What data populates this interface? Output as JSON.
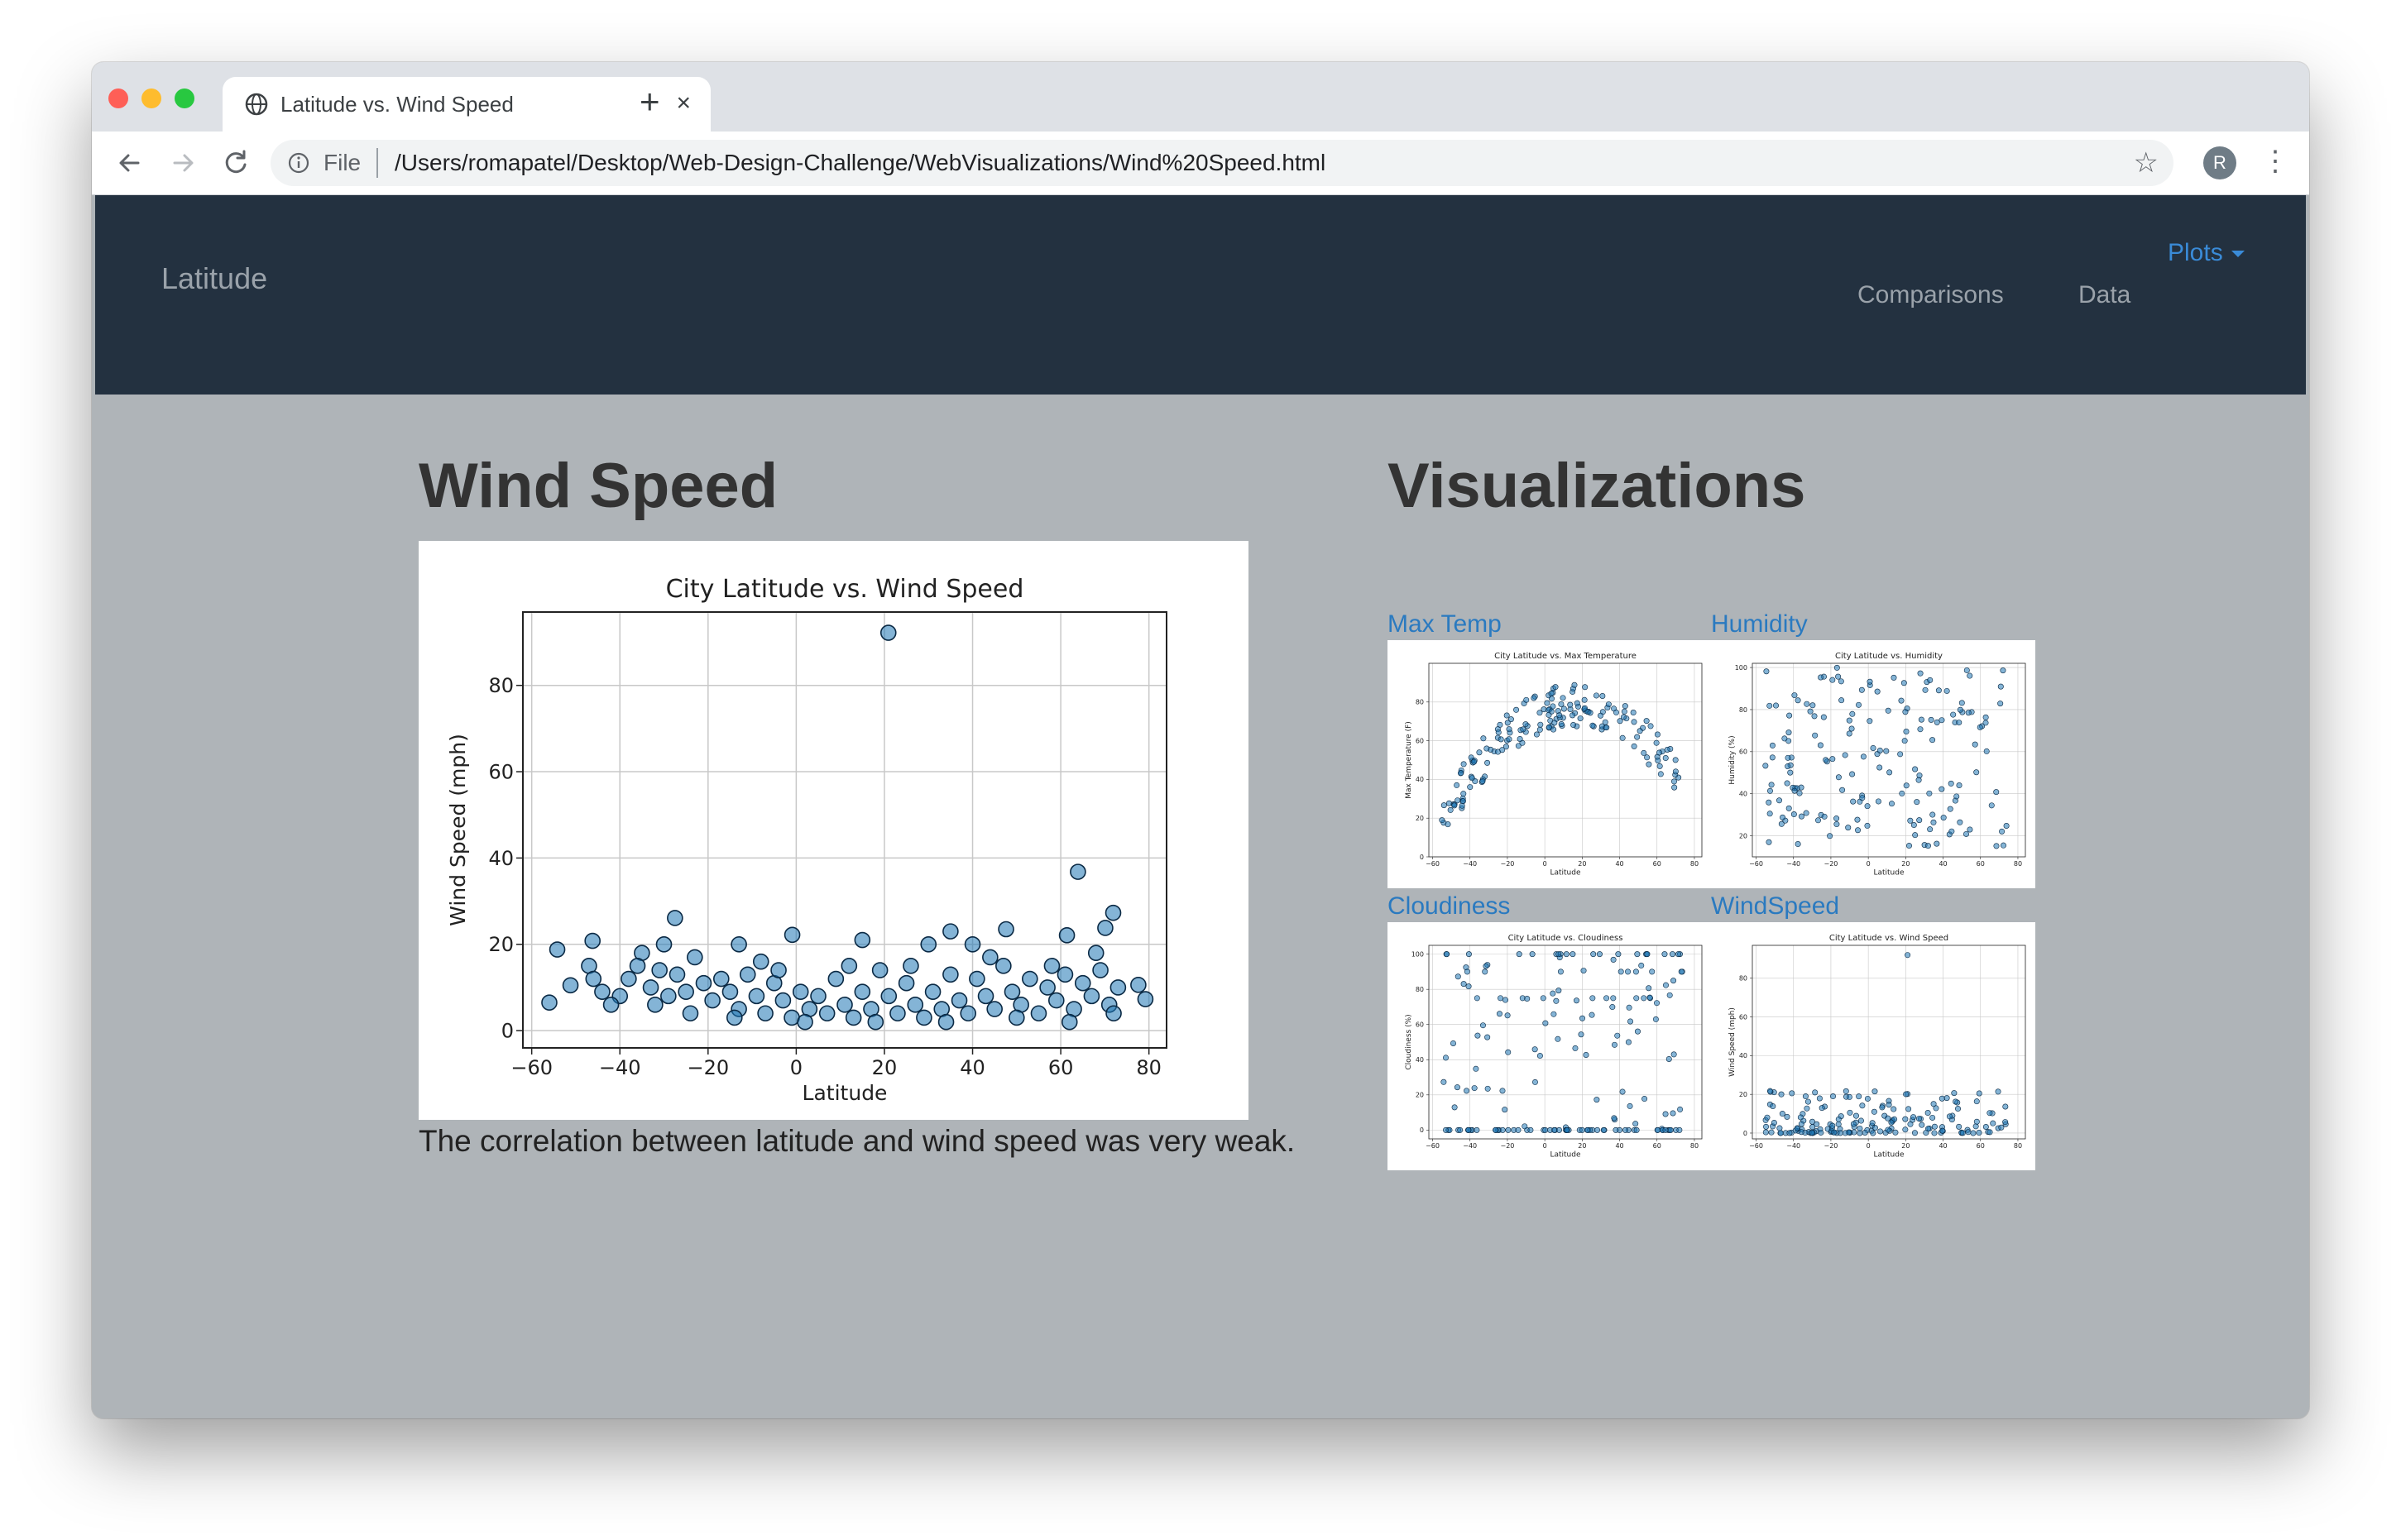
{
  "browser": {
    "tab_title": "Latitude vs. Wind Speed",
    "new_tab": "+",
    "close": "×",
    "scheme": "File",
    "url": "/Users/romapatel/Desktop/Web-Design-Challenge/WebVisualizations/Wind%20Speed.html",
    "profile_initial": "R"
  },
  "navbar": {
    "brand": "Latitude",
    "dropdown_label": "Plots",
    "links": [
      "Comparisons",
      "Data"
    ]
  },
  "main": {
    "heading": "Wind Speed",
    "caption": "The correlation between latitude and wind speed was very weak."
  },
  "visualizations": {
    "heading": "Visualizations",
    "thumbs": [
      {
        "label": "Max Temp",
        "title": "City Latitude vs. Max Temperature",
        "ylabel": "Max Temperature (F)",
        "ymin": 0,
        "ymax": 100,
        "yticks": [
          0,
          20,
          40,
          60,
          80
        ]
      },
      {
        "label": "Humidity",
        "title": "City Latitude vs. Humidity",
        "ylabel": "Humidity (%)",
        "ymin": 10,
        "ymax": 102,
        "yticks": [
          20,
          40,
          60,
          80,
          100
        ]
      },
      {
        "label": "Cloudiness",
        "title": "City Latitude vs. Cloudiness",
        "ylabel": "Cloudiness (%)",
        "ymin": -5,
        "ymax": 105,
        "yticks": [
          0,
          20,
          40,
          60,
          80,
          100
        ]
      },
      {
        "label": "WindSpeed",
        "title": "City Latitude vs. Wind Speed",
        "ylabel": "Wind Speed (mph)",
        "ymin": -3,
        "ymax": 97,
        "yticks": [
          0,
          20,
          40,
          60,
          80
        ]
      }
    ]
  },
  "colors": {
    "navbar_bg": "#233140",
    "page_bg": "#afb4b8",
    "link": "#3a8bd8",
    "marker_fill": "#1f77b4"
  },
  "chart_data": [
    {
      "type": "scatter",
      "title": "City Latitude vs. Wind Speed",
      "xlabel": "Latitude",
      "ylabel": "Wind Speed (mph)",
      "xlim": [
        -62,
        84
      ],
      "ylim": [
        -4,
        97
      ],
      "xticks": [
        -60,
        -40,
        -20,
        0,
        20,
        40,
        60,
        80
      ],
      "yticks": [
        0,
        20,
        40,
        60,
        80
      ],
      "grid": true,
      "points": [
        [
          20.9,
          92.2
        ],
        [
          63.9,
          36.8
        ],
        [
          71.9,
          27.3
        ],
        [
          70.1,
          23.8
        ],
        [
          -27.5,
          26.1
        ],
        [
          61.4,
          22.1
        ],
        [
          47.6,
          23.5
        ],
        [
          -0.9,
          22.2
        ],
        [
          -46.2,
          20.8
        ],
        [
          -54.2,
          18.8
        ],
        [
          -51.2,
          10.5
        ],
        [
          -56.0,
          6.5
        ],
        [
          77.6,
          10.6
        ],
        [
          79.2,
          7.3
        ],
        [
          15.0,
          21.0
        ],
        [
          35.0,
          23.0
        ],
        [
          -13.0,
          20.0
        ],
        [
          -30.0,
          20.0
        ],
        [
          30.0,
          20.0
        ],
        [
          -35.0,
          18.0
        ],
        [
          -47.0,
          15.0
        ],
        [
          -46.0,
          12.0
        ],
        [
          -44.0,
          9.0
        ],
        [
          -40.0,
          8.0
        ],
        [
          -42.0,
          6.0
        ],
        [
          -38.0,
          12.0
        ],
        [
          -36.0,
          15.0
        ],
        [
          -33.0,
          10.0
        ],
        [
          -31.0,
          14.0
        ],
        [
          -29.0,
          8.0
        ],
        [
          -27.0,
          13.0
        ],
        [
          -25.0,
          9.0
        ],
        [
          -23.0,
          17.0
        ],
        [
          -21.0,
          11.0
        ],
        [
          -19.0,
          7.0
        ],
        [
          -17.0,
          12.0
        ],
        [
          -15.0,
          9.0
        ],
        [
          -13.0,
          5.0
        ],
        [
          -11.0,
          13.0
        ],
        [
          -9.0,
          8.0
        ],
        [
          -7.0,
          4.0
        ],
        [
          -5.0,
          11.0
        ],
        [
          -3.0,
          7.0
        ],
        [
          -1.0,
          3.0
        ],
        [
          1.0,
          9.0
        ],
        [
          3.0,
          5.0
        ],
        [
          5.0,
          8.0
        ],
        [
          7.0,
          4.0
        ],
        [
          9.0,
          12.0
        ],
        [
          11.0,
          6.0
        ],
        [
          13.0,
          3.0
        ],
        [
          15.0,
          9.0
        ],
        [
          17.0,
          5.0
        ],
        [
          19.0,
          14.0
        ],
        [
          21.0,
          8.0
        ],
        [
          23.0,
          4.0
        ],
        [
          25.0,
          11.0
        ],
        [
          27.0,
          6.0
        ],
        [
          29.0,
          3.0
        ],
        [
          31.0,
          9.0
        ],
        [
          33.0,
          5.0
        ],
        [
          35.0,
          13.0
        ],
        [
          37.0,
          7.0
        ],
        [
          39.0,
          4.0
        ],
        [
          41.0,
          12.0
        ],
        [
          43.0,
          8.0
        ],
        [
          45.0,
          5.0
        ],
        [
          47.0,
          15.0
        ],
        [
          49.0,
          9.0
        ],
        [
          51.0,
          6.0
        ],
        [
          53.0,
          12.0
        ],
        [
          55.0,
          4.0
        ],
        [
          57.0,
          10.0
        ],
        [
          59.0,
          7.0
        ],
        [
          61.0,
          13.0
        ],
        [
          63.0,
          5.0
        ],
        [
          65.0,
          11.0
        ],
        [
          67.0,
          8.0
        ],
        [
          69.0,
          14.0
        ],
        [
          71.0,
          6.0
        ],
        [
          73.0,
          10.0
        ],
        [
          68.0,
          18.0
        ],
        [
          58.0,
          15.0
        ],
        [
          44.0,
          17.0
        ],
        [
          26.0,
          15.0
        ],
        [
          -8.0,
          16.0
        ],
        [
          -32.0,
          6.0
        ],
        [
          -24.0,
          4.0
        ],
        [
          -14.0,
          3.0
        ],
        [
          2.0,
          2.0
        ],
        [
          18.0,
          2.0
        ],
        [
          34.0,
          2.0
        ],
        [
          50.0,
          3.0
        ],
        [
          62.0,
          2.0
        ],
        [
          72.0,
          4.0
        ],
        [
          -4.0,
          14.0
        ],
        [
          12.0,
          15.0
        ],
        [
          40.0,
          20.0
        ]
      ]
    }
  ]
}
